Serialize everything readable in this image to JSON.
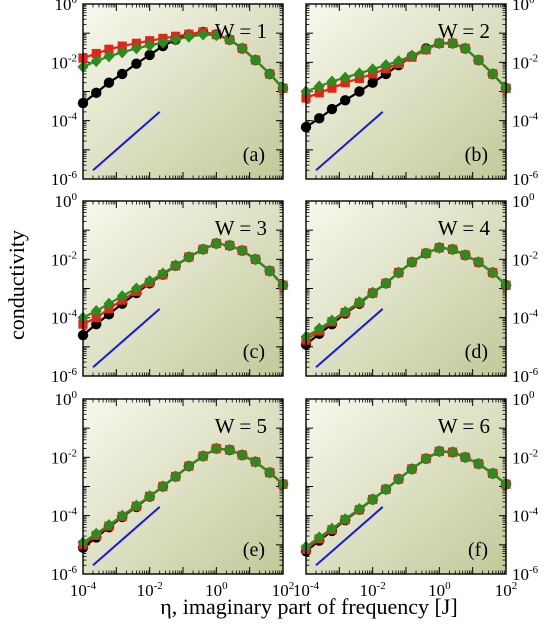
{
  "figure": {
    "ylabel": "conductivity",
    "xlabel": "η, imaginary part of frequency [J]"
  },
  "colors": {
    "black_series": "#000000",
    "red_series": "#e0261c",
    "green_series": "#2e8b1e",
    "slope_line": "#1a1ad6",
    "panel_bg_light": "#f8f8ee",
    "panel_bg_dark": "#c2c999"
  },
  "chart_data": [
    {
      "type": "line",
      "panel": "(a)",
      "title": "W = 1",
      "xscale": "log",
      "yscale": "log",
      "xlim": [
        0.0001,
        100
      ],
      "ylim": [
        1e-06,
        1
      ],
      "x": [
        0.0001,
        0.00025,
        0.0006,
        0.0015,
        0.004,
        0.01,
        0.025,
        0.06,
        0.15,
        0.4,
        1,
        2.5,
        6,
        15,
        40,
        100
      ],
      "series": [
        {
          "marker": "circle",
          "values": [
            0.0004,
            0.0009,
            0.002,
            0.004,
            0.009,
            0.018,
            0.036,
            0.06,
            0.09,
            0.11,
            0.09,
            0.06,
            0.03,
            0.012,
            0.004,
            0.0013
          ]
        },
        {
          "marker": "square",
          "values": [
            0.014,
            0.02,
            0.028,
            0.036,
            0.045,
            0.055,
            0.066,
            0.078,
            0.092,
            0.11,
            0.09,
            0.06,
            0.03,
            0.012,
            0.004,
            0.0013
          ]
        },
        {
          "marker": "diamond",
          "values": [
            0.007,
            0.011,
            0.016,
            0.022,
            0.03,
            0.038,
            0.048,
            0.06,
            0.075,
            0.09,
            0.085,
            0.06,
            0.03,
            0.012,
            0.004,
            0.0013
          ]
        }
      ],
      "guide_line": {
        "x": [
          0.0002,
          0.02
        ],
        "y": [
          2e-06,
          0.0002
        ]
      },
      "ticks_left": true,
      "ticks_right": false,
      "ticks_bottom": false
    },
    {
      "type": "line",
      "panel": "(b)",
      "title": "W = 2",
      "xscale": "log",
      "yscale": "log",
      "xlim": [
        0.0001,
        100
      ],
      "ylim": [
        1e-06,
        1
      ],
      "x": [
        0.0001,
        0.00025,
        0.0006,
        0.0015,
        0.004,
        0.01,
        0.025,
        0.06,
        0.15,
        0.4,
        1,
        2.5,
        6,
        15,
        40,
        100
      ],
      "series": [
        {
          "marker": "circle",
          "values": [
            6e-05,
            0.00012,
            0.00025,
            0.0005,
            0.001,
            0.002,
            0.004,
            0.008,
            0.016,
            0.03,
            0.045,
            0.045,
            0.03,
            0.012,
            0.004,
            0.0013
          ]
        },
        {
          "marker": "square",
          "values": [
            0.0006,
            0.0009,
            0.0013,
            0.002,
            0.0028,
            0.004,
            0.006,
            0.009,
            0.015,
            0.027,
            0.045,
            0.045,
            0.03,
            0.012,
            0.004,
            0.0013
          ]
        },
        {
          "marker": "diamond",
          "values": [
            0.001,
            0.0015,
            0.0022,
            0.003,
            0.0042,
            0.0058,
            0.008,
            0.011,
            0.017,
            0.028,
            0.045,
            0.045,
            0.03,
            0.012,
            0.004,
            0.0013
          ]
        }
      ],
      "guide_line": {
        "x": [
          0.0002,
          0.02
        ],
        "y": [
          2e-06,
          0.0002
        ]
      },
      "ticks_left": false,
      "ticks_right": true,
      "ticks_bottom": false
    },
    {
      "type": "line",
      "panel": "(c)",
      "title": "W = 3",
      "xscale": "log",
      "yscale": "log",
      "xlim": [
        0.0001,
        100
      ],
      "ylim": [
        1e-06,
        1
      ],
      "x": [
        0.0001,
        0.00025,
        0.0006,
        0.0015,
        0.004,
        0.01,
        0.025,
        0.06,
        0.15,
        0.4,
        1,
        2.5,
        6,
        15,
        40,
        100
      ],
      "series": [
        {
          "marker": "circle",
          "values": [
            2.5e-05,
            6e-05,
            0.00013,
            0.0003,
            0.0007,
            0.0015,
            0.003,
            0.006,
            0.012,
            0.022,
            0.035,
            0.03,
            0.02,
            0.01,
            0.004,
            0.0013
          ]
        },
        {
          "marker": "square",
          "values": [
            6e-05,
            0.0001,
            0.0002,
            0.0004,
            0.0008,
            0.0016,
            0.003,
            0.006,
            0.012,
            0.022,
            0.035,
            0.03,
            0.02,
            0.01,
            0.004,
            0.0013
          ]
        },
        {
          "marker": "diamond",
          "values": [
            0.0001,
            0.00017,
            0.0003,
            0.00055,
            0.001,
            0.0018,
            0.0033,
            0.0062,
            0.012,
            0.022,
            0.035,
            0.03,
            0.02,
            0.01,
            0.004,
            0.0013
          ]
        }
      ],
      "guide_line": {
        "x": [
          0.0002,
          0.02
        ],
        "y": [
          2e-06,
          0.0002
        ]
      },
      "ticks_left": true,
      "ticks_right": false,
      "ticks_bottom": false
    },
    {
      "type": "line",
      "panel": "(d)",
      "title": "W = 4",
      "xscale": "log",
      "yscale": "log",
      "xlim": [
        0.0001,
        100
      ],
      "ylim": [
        1e-06,
        1
      ],
      "x": [
        0.0001,
        0.00025,
        0.0006,
        0.0015,
        0.004,
        0.01,
        0.025,
        0.06,
        0.15,
        0.4,
        1,
        2.5,
        6,
        15,
        40,
        100
      ],
      "series": [
        {
          "marker": "circle",
          "values": [
            1.2e-05,
            2.8e-05,
            6e-05,
            0.00014,
            0.0003,
            0.0007,
            0.0015,
            0.0035,
            0.008,
            0.016,
            0.025,
            0.022,
            0.014,
            0.008,
            0.0035,
            0.0013
          ]
        },
        {
          "marker": "square",
          "values": [
            1.7e-05,
            3.5e-05,
            7.2e-05,
            0.00015,
            0.00032,
            0.0007,
            0.0015,
            0.0035,
            0.008,
            0.016,
            0.025,
            0.022,
            0.014,
            0.008,
            0.0035,
            0.0013
          ]
        },
        {
          "marker": "diamond",
          "values": [
            2.2e-05,
            4.2e-05,
            8e-05,
            0.00016,
            0.00034,
            0.00072,
            0.0015,
            0.0035,
            0.008,
            0.016,
            0.025,
            0.022,
            0.014,
            0.008,
            0.0035,
            0.0013
          ]
        }
      ],
      "guide_line": {
        "x": [
          0.0002,
          0.02
        ],
        "y": [
          2e-06,
          0.0002
        ]
      },
      "ticks_left": false,
      "ticks_right": true,
      "ticks_bottom": false
    },
    {
      "type": "line",
      "panel": "(e)",
      "title": "W = 5",
      "xscale": "log",
      "yscale": "log",
      "xlim": [
        0.0001,
        100
      ],
      "ylim": [
        1e-06,
        1
      ],
      "x": [
        0.0001,
        0.00025,
        0.0006,
        0.0015,
        0.004,
        0.01,
        0.025,
        0.06,
        0.15,
        0.4,
        1,
        2.5,
        6,
        15,
        40,
        100
      ],
      "series": [
        {
          "marker": "circle",
          "values": [
            8e-06,
            1.8e-05,
            4e-05,
            9e-05,
            0.0002,
            0.00045,
            0.001,
            0.0022,
            0.005,
            0.011,
            0.02,
            0.018,
            0.012,
            0.007,
            0.003,
            0.0012
          ]
        },
        {
          "marker": "square",
          "values": [
            1e-05,
            2.1e-05,
            4.4e-05,
            9.5e-05,
            0.00021,
            0.00046,
            0.001,
            0.0022,
            0.005,
            0.011,
            0.02,
            0.018,
            0.012,
            0.007,
            0.003,
            0.0012
          ]
        },
        {
          "marker": "diamond",
          "values": [
            1.2e-05,
            2.4e-05,
            4.8e-05,
            0.0001,
            0.00022,
            0.00047,
            0.001,
            0.0022,
            0.005,
            0.011,
            0.02,
            0.018,
            0.012,
            0.007,
            0.003,
            0.0012
          ]
        }
      ],
      "guide_line": {
        "x": [
          0.0002,
          0.02
        ],
        "y": [
          2e-06,
          0.0002
        ]
      },
      "ticks_left": true,
      "ticks_right": false,
      "ticks_bottom": true
    },
    {
      "type": "line",
      "panel": "(f)",
      "title": "W = 6",
      "xscale": "log",
      "yscale": "log",
      "xlim": [
        0.0001,
        100
      ],
      "ylim": [
        1e-06,
        1
      ],
      "x": [
        0.0001,
        0.00025,
        0.0006,
        0.0015,
        0.004,
        0.01,
        0.025,
        0.06,
        0.15,
        0.4,
        1,
        2.5,
        6,
        15,
        40,
        100
      ],
      "series": [
        {
          "marker": "circle",
          "values": [
            6e-06,
            1.4e-05,
            3e-05,
            7e-05,
            0.00016,
            0.00036,
            0.0008,
            0.0018,
            0.004,
            0.009,
            0.016,
            0.015,
            0.01,
            0.006,
            0.0028,
            0.0012
          ]
        },
        {
          "marker": "square",
          "values": [
            7e-06,
            1.6e-05,
            3.3e-05,
            7.3e-05,
            0.00016,
            0.00036,
            0.0008,
            0.0018,
            0.004,
            0.009,
            0.016,
            0.015,
            0.01,
            0.006,
            0.0028,
            0.0012
          ]
        },
        {
          "marker": "diamond",
          "values": [
            8.5e-06,
            1.8e-05,
            3.6e-05,
            7.6e-05,
            0.00017,
            0.00037,
            0.0008,
            0.0018,
            0.004,
            0.009,
            0.016,
            0.015,
            0.01,
            0.006,
            0.0028,
            0.0012
          ]
        }
      ],
      "guide_line": {
        "x": [
          0.0002,
          0.02
        ],
        "y": [
          2e-06,
          0.0002
        ]
      },
      "ticks_left": false,
      "ticks_right": true,
      "ticks_bottom": true
    }
  ]
}
